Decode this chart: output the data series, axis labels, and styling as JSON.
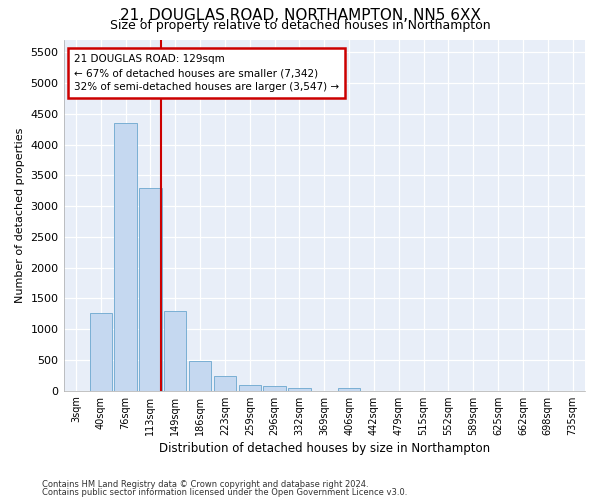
{
  "title": "21, DOUGLAS ROAD, NORTHAMPTON, NN5 6XX",
  "subtitle": "Size of property relative to detached houses in Northampton",
  "xlabel": "Distribution of detached houses by size in Northampton",
  "ylabel": "Number of detached properties",
  "footnote1": "Contains HM Land Registry data © Crown copyright and database right 2024.",
  "footnote2": "Contains public sector information licensed under the Open Government Licence v3.0.",
  "categories": [
    "3sqm",
    "40sqm",
    "76sqm",
    "113sqm",
    "149sqm",
    "186sqm",
    "223sqm",
    "259sqm",
    "296sqm",
    "332sqm",
    "369sqm",
    "406sqm",
    "442sqm",
    "479sqm",
    "515sqm",
    "552sqm",
    "589sqm",
    "625sqm",
    "662sqm",
    "698sqm",
    "735sqm"
  ],
  "values": [
    0,
    1270,
    4350,
    3300,
    1300,
    480,
    240,
    100,
    75,
    50,
    0,
    50,
    0,
    0,
    0,
    0,
    0,
    0,
    0,
    0,
    0
  ],
  "bar_color": "#c5d8f0",
  "bar_edge_color": "#7aafd4",
  "ylim": [
    0,
    5700
  ],
  "yticks": [
    0,
    500,
    1000,
    1500,
    2000,
    2500,
    3000,
    3500,
    4000,
    4500,
    5000,
    5500
  ],
  "property_line_x": 3.42,
  "annotation_title": "21 DOUGLAS ROAD: 129sqm",
  "annotation_line1": "← 67% of detached houses are smaller (7,342)",
  "annotation_line2": "32% of semi-detached houses are larger (3,547) →",
  "annotation_box_color": "#ffffff",
  "annotation_box_edge": "#cc0000",
  "red_line_color": "#cc0000",
  "fig_bg_color": "#ffffff",
  "plot_bg_color": "#e8eef8",
  "grid_color": "#ffffff",
  "title_fontsize": 11,
  "subtitle_fontsize": 9
}
